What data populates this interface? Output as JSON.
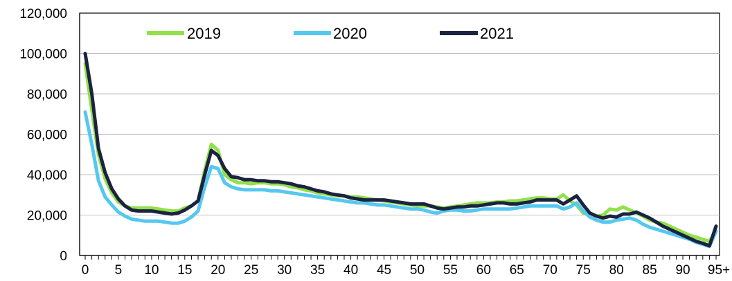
{
  "chart_data": {
    "type": "line",
    "title": "",
    "xlabel": "",
    "ylabel": "",
    "ylim": [
      0,
      120000
    ],
    "yticks": [
      0,
      20000,
      40000,
      60000,
      80000,
      100000,
      120000
    ],
    "ytick_labels": [
      "0",
      "20,000",
      "40,000",
      "60,000",
      "80,000",
      "100,000",
      "120,000"
    ],
    "xticks": [
      0,
      5,
      10,
      15,
      20,
      25,
      30,
      35,
      40,
      45,
      50,
      55,
      60,
      65,
      70,
      75,
      80,
      85,
      90,
      95
    ],
    "xtick_labels": [
      "0",
      "5",
      "10",
      "15",
      "20",
      "25",
      "30",
      "35",
      "40",
      "45",
      "50",
      "55",
      "60",
      "65",
      "70",
      "75",
      "80",
      "85",
      "90",
      "95+"
    ],
    "grid": "horizontal",
    "legend_position": "top",
    "x": [
      0,
      1,
      2,
      3,
      4,
      5,
      6,
      7,
      8,
      9,
      10,
      11,
      12,
      13,
      14,
      15,
      16,
      17,
      18,
      19,
      20,
      21,
      22,
      23,
      24,
      25,
      26,
      27,
      28,
      29,
      30,
      31,
      32,
      33,
      34,
      35,
      36,
      37,
      38,
      39,
      40,
      41,
      42,
      43,
      44,
      45,
      46,
      47,
      48,
      49,
      50,
      51,
      52,
      53,
      54,
      55,
      56,
      57,
      58,
      59,
      60,
      61,
      62,
      63,
      64,
      65,
      66,
      67,
      68,
      69,
      70,
      71,
      72,
      73,
      74,
      75,
      76,
      77,
      78,
      79,
      80,
      81,
      82,
      83,
      84,
      85,
      86,
      87,
      88,
      89,
      90,
      91,
      92,
      93,
      94,
      95
    ],
    "series": [
      {
        "name": "2019",
        "color": "#92e04a",
        "values": [
          95000,
          72000,
          50000,
          38000,
          31000,
          26500,
          24500,
          23500,
          23500,
          23500,
          23500,
          23000,
          22500,
          22000,
          22000,
          23500,
          24500,
          27000,
          42000,
          55000,
          52000,
          40000,
          37500,
          36000,
          36000,
          35500,
          36000,
          36000,
          35500,
          35500,
          35000,
          34000,
          33500,
          32500,
          32000,
          31000,
          30500,
          30000,
          29500,
          29500,
          29000,
          29000,
          28500,
          28000,
          27500,
          27000,
          26500,
          26000,
          25500,
          25000,
          24500,
          24500,
          24500,
          24000,
          23500,
          24000,
          24500,
          25000,
          25500,
          26000,
          26000,
          26000,
          26500,
          26500,
          27000,
          27000,
          27500,
          28000,
          28500,
          28500,
          28000,
          28000,
          30000,
          27000,
          25000,
          21000,
          20000,
          19500,
          20000,
          23000,
          22500,
          24000,
          22500,
          21000,
          19500,
          17500,
          16500,
          16000,
          14500,
          13000,
          11500,
          10000,
          9000,
          8000,
          7000,
          12000
        ]
      },
      {
        "name": "2020",
        "color": "#55c8ef",
        "values": [
          71000,
          55000,
          37000,
          29000,
          25000,
          21500,
          19500,
          18000,
          17500,
          17000,
          17000,
          17000,
          16500,
          16000,
          16000,
          17000,
          19000,
          22000,
          34000,
          44000,
          43000,
          36000,
          34000,
          33000,
          32500,
          32500,
          32500,
          32500,
          32000,
          32000,
          31500,
          31000,
          30500,
          30000,
          29500,
          29000,
          28500,
          28000,
          27500,
          27000,
          26500,
          26000,
          26000,
          25500,
          25000,
          25000,
          24500,
          24000,
          23500,
          23000,
          23000,
          22500,
          21500,
          21000,
          22000,
          22500,
          22500,
          22000,
          22000,
          22500,
          23000,
          23000,
          23000,
          23000,
          23000,
          23500,
          24000,
          24500,
          24500,
          24500,
          24500,
          24500,
          23000,
          24000,
          26000,
          22000,
          19000,
          17500,
          16500,
          16500,
          17500,
          18000,
          18500,
          17500,
          15500,
          14000,
          13000,
          12000,
          11000,
          10000,
          9000,
          8000,
          6500,
          5500,
          4500,
          12000
        ]
      },
      {
        "name": "2021",
        "color": "#1b2340",
        "values": [
          100000,
          80000,
          53000,
          41000,
          33000,
          28000,
          24500,
          22500,
          22000,
          22000,
          22000,
          21500,
          21000,
          20500,
          21000,
          22500,
          24500,
          27000,
          40000,
          52000,
          49500,
          43000,
          39000,
          38500,
          37500,
          37500,
          37000,
          37000,
          36500,
          36500,
          36000,
          35500,
          34500,
          34000,
          33000,
          32000,
          31500,
          30500,
          30000,
          29500,
          28500,
          28000,
          27500,
          27500,
          27500,
          27500,
          27000,
          26500,
          26000,
          25500,
          25500,
          25500,
          24500,
          23500,
          23000,
          23500,
          24000,
          24000,
          24500,
          24500,
          25000,
          25500,
          26000,
          26000,
          25500,
          25500,
          26000,
          26500,
          27500,
          27500,
          27500,
          27500,
          25500,
          27500,
          29500,
          25000,
          21000,
          19500,
          18500,
          19500,
          19000,
          20500,
          20500,
          21500,
          20000,
          18500,
          16500,
          14500,
          13000,
          11500,
          10000,
          8500,
          7000,
          6000,
          4800,
          14500
        ]
      }
    ]
  }
}
